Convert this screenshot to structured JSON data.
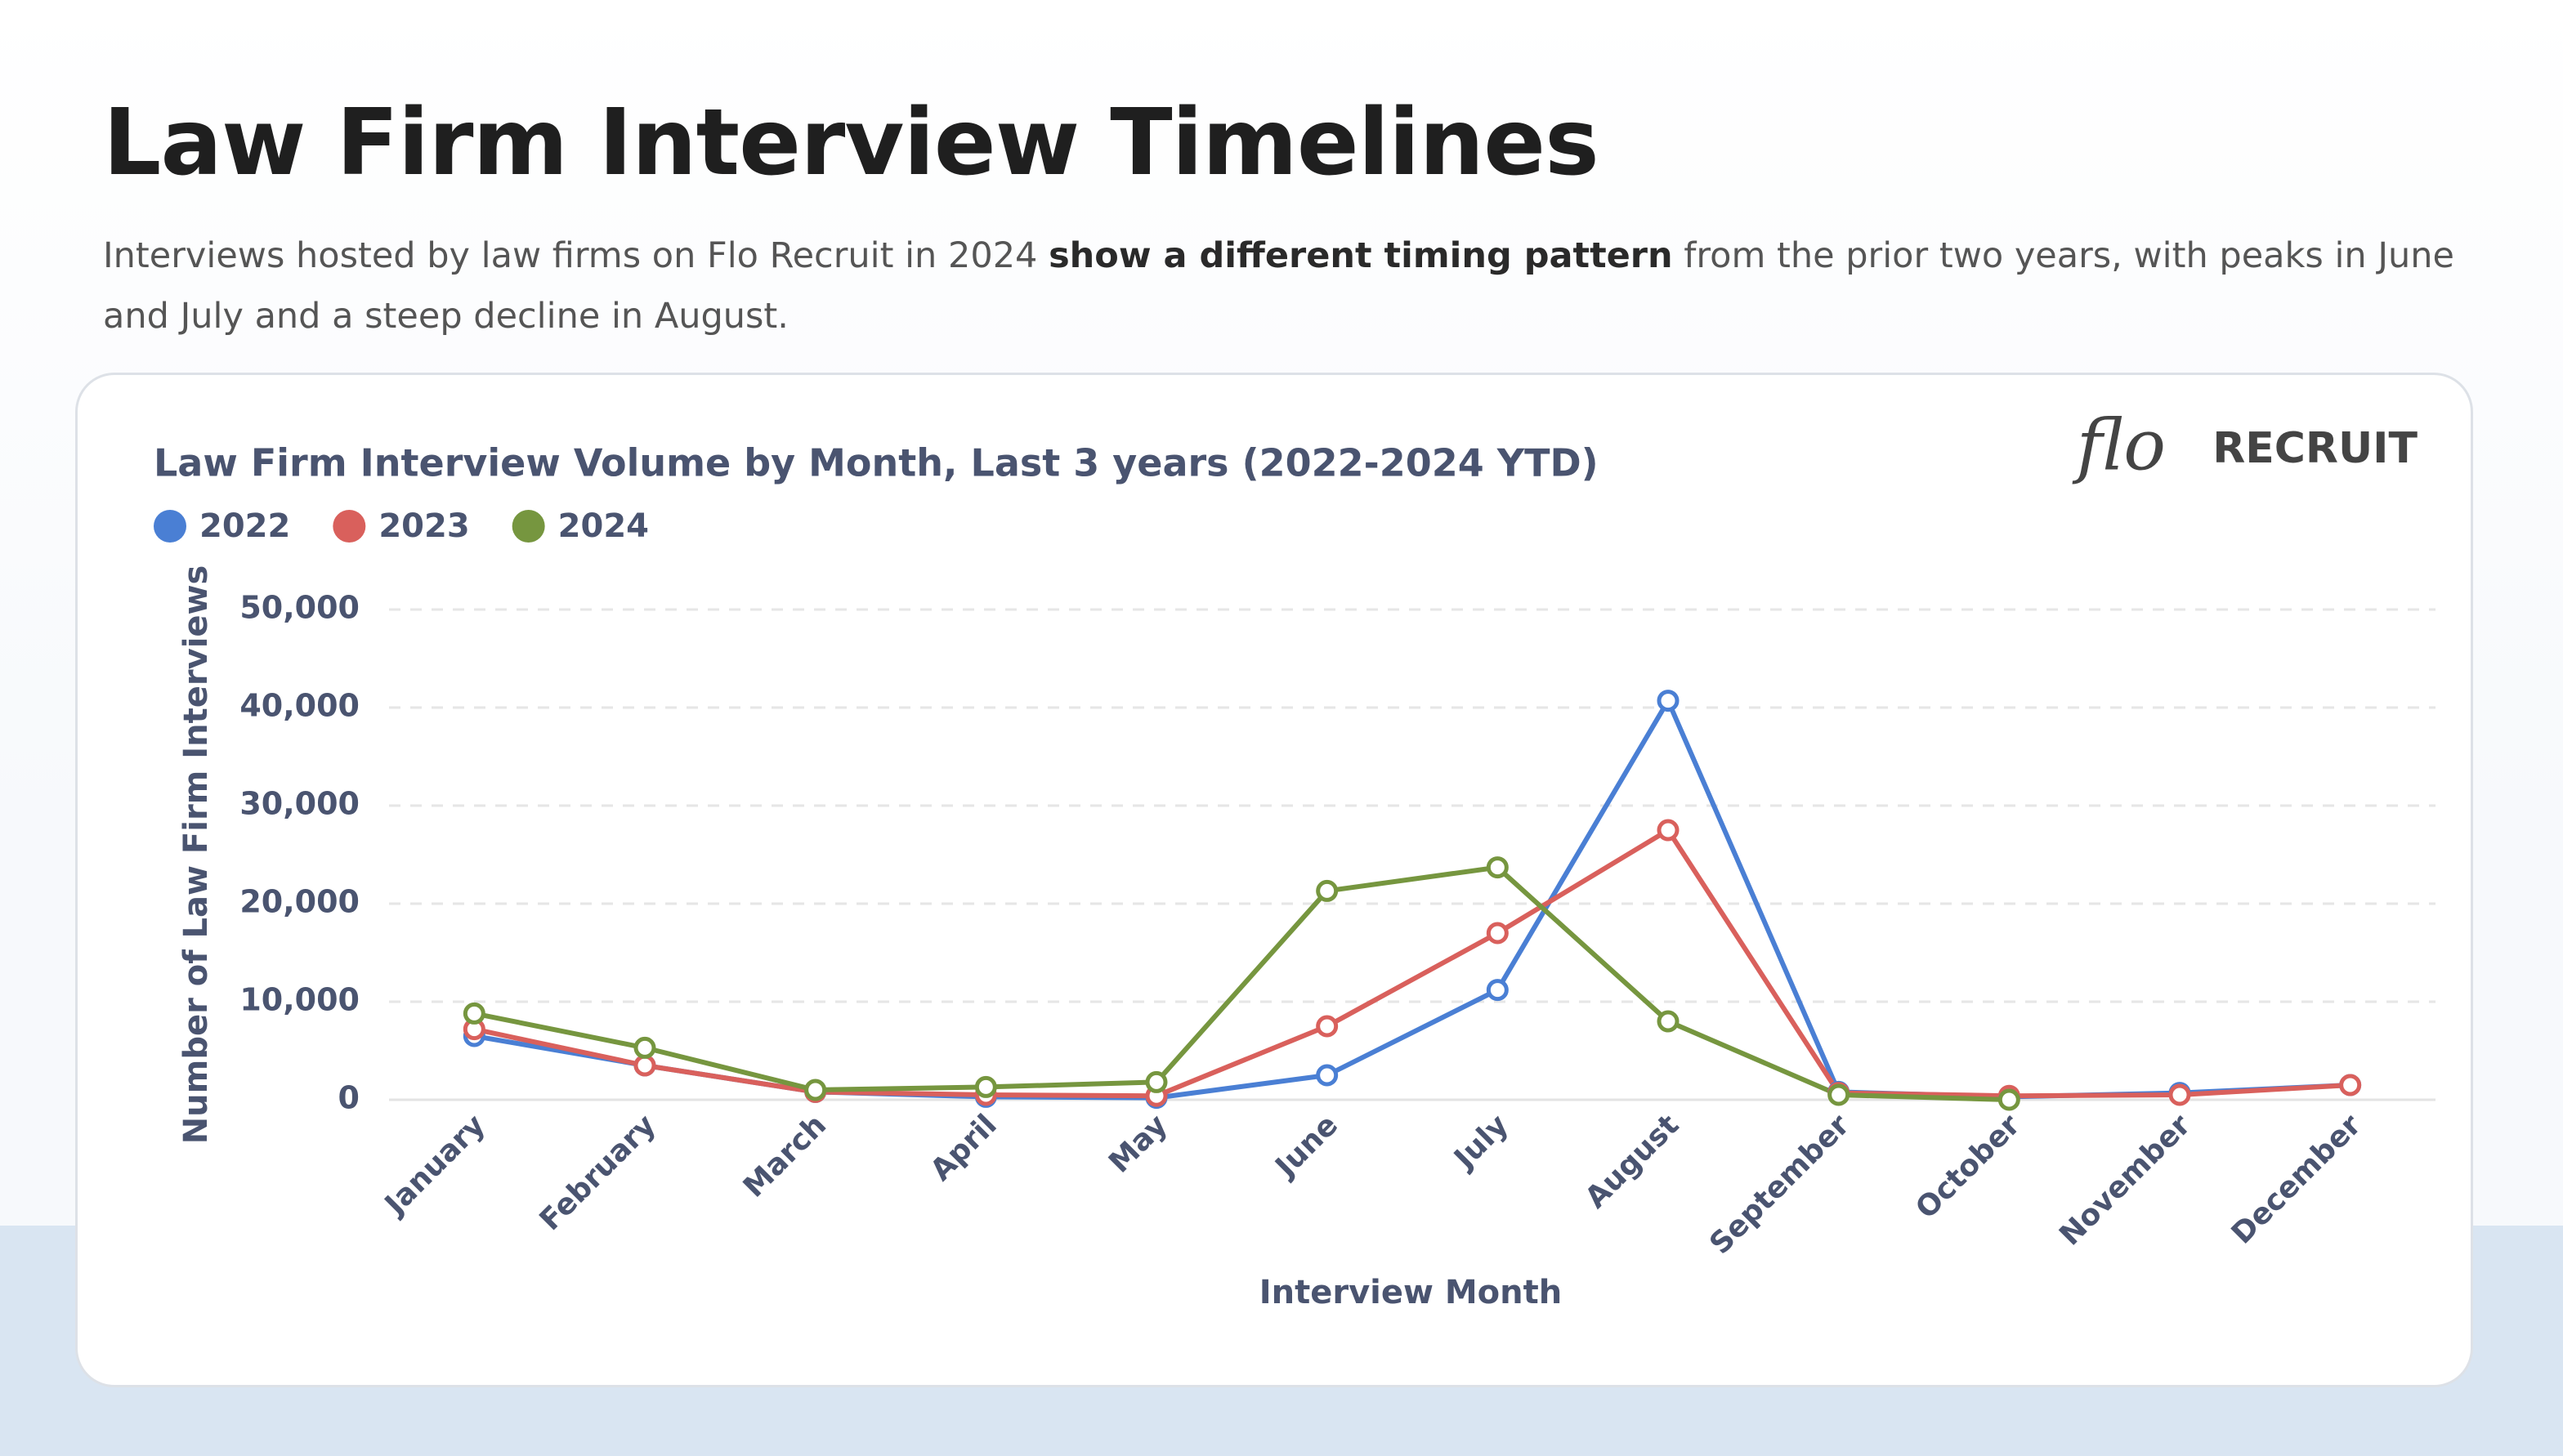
{
  "header": {
    "title": "Law Firm Interview Timelines",
    "subtitle_start": "Interviews hosted by law firms on Flo Recruit in 2024 ",
    "subtitle_bold": "show a different timing pattern",
    "subtitle_end": " from the prior two years, with peaks in June and July and a steep decline in August."
  },
  "logo": {
    "mark": "flo",
    "text": "RECRUIT"
  },
  "chart_data": {
    "type": "line",
    "title": "Law Firm Interview Volume by Month, Last 3 years (2022-2024 YTD)",
    "x_label": "Interview Month",
    "y_label": "Number of Law Firm Interviews",
    "categories": [
      "January",
      "February",
      "March",
      "April",
      "May",
      "June",
      "July",
      "August",
      "September",
      "October",
      "November",
      "December"
    ],
    "series": [
      {
        "name": "2022",
        "color": "#4a7fd4",
        "values": [
          6500,
          3500,
          800,
          300,
          200,
          2500,
          11200,
          40700,
          800,
          300,
          700,
          1500
        ]
      },
      {
        "name": "2023",
        "color": "#d9605c",
        "values": [
          7200,
          3500,
          800,
          500,
          400,
          7500,
          17000,
          27500,
          700,
          400,
          500,
          1500
        ]
      },
      {
        "name": "2024",
        "color": "#76963f",
        "values": [
          8800,
          5300,
          1000,
          1300,
          1800,
          21300,
          23700,
          8000,
          500,
          0,
          null,
          null
        ]
      }
    ],
    "ylim": [
      0,
      50000
    ],
    "yticks": [
      0,
      {
        "value": 10000,
        "label": "10,000"
      },
      {
        "value": 20000,
        "label": "20,000"
      },
      {
        "value": 30000,
        "label": "30,000"
      },
      {
        "value": 40000,
        "label": "40,000"
      },
      {
        "value": 50000,
        "label": "50,000"
      }
    ],
    "grid": true
  }
}
